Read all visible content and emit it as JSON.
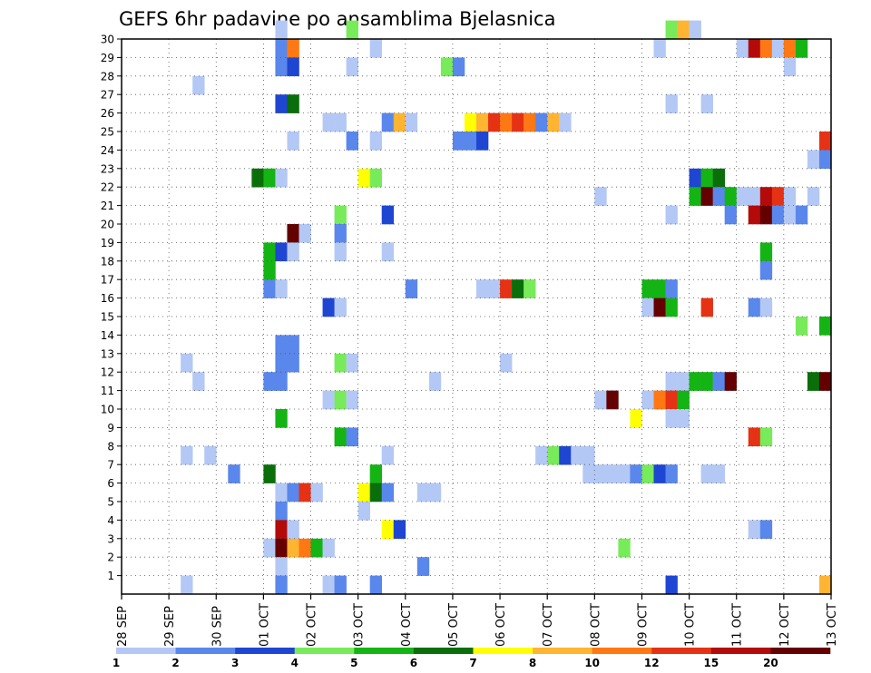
{
  "chart_data": {
    "type": "heatmap",
    "title": "GEFS 6hr padavine po ansamblima Bjelasnica",
    "xlabel": "",
    "ylabel": "",
    "x_tick_labels": [
      "28 SEP",
      "29 SEP",
      "30 SEP",
      "01 OCT",
      "02 OCT",
      "03 OCT",
      "04 OCT",
      "05 OCT",
      "06 OCT",
      "07 OCT",
      "08 OCT",
      "09 OCT",
      "10 OCT",
      "11 OCT",
      "12 OCT",
      "13 OCT"
    ],
    "y_tick_labels": [
      "1",
      "2",
      "3",
      "4",
      "5",
      "6",
      "7",
      "8",
      "9",
      "10",
      "11",
      "12",
      "13",
      "14",
      "15",
      "16",
      "17",
      "18",
      "19",
      "20",
      "21",
      "22",
      "23",
      "24",
      "25",
      "26",
      "27",
      "28",
      "29",
      "30"
    ],
    "ylim": [
      0,
      30
    ],
    "x_step": "6hr",
    "n_steps": 60,
    "grid": true,
    "legend_labels": [
      "1",
      "2",
      "3",
      "4",
      "5",
      "6",
      "7",
      "8",
      "10",
      "12",
      "15",
      "20"
    ],
    "colors": [
      "#b4c8f5",
      "#5a87eb",
      "#1e46d2",
      "#78eb5a",
      "#14b414",
      "#0a6e0a",
      "#ffff00",
      "#ffb432",
      "#ff7814",
      "#e63214",
      "#b40a0a",
      "#640000"
    ],
    "cells_comment_free": true,
    "cells": [
      [
        13,
        30,
        0
      ],
      [
        19,
        30,
        3
      ],
      [
        46,
        30,
        3
      ],
      [
        47,
        30,
        7
      ],
      [
        48,
        30,
        0
      ],
      [
        13,
        29,
        1
      ],
      [
        14,
        29,
        8
      ],
      [
        21,
        29,
        0
      ],
      [
        45,
        29,
        0
      ],
      [
        52,
        29,
        0
      ],
      [
        53,
        29,
        10
      ],
      [
        54,
        29,
        8
      ],
      [
        55,
        29,
        0
      ],
      [
        56,
        29,
        8
      ],
      [
        57,
        29,
        4
      ],
      [
        13,
        28,
        1
      ],
      [
        14,
        28,
        2
      ],
      [
        19,
        28,
        0
      ],
      [
        27,
        28,
        3
      ],
      [
        28,
        28,
        1
      ],
      [
        56,
        28,
        0
      ],
      [
        6,
        27,
        0
      ],
      [
        13,
        26,
        2
      ],
      [
        14,
        26,
        5
      ],
      [
        46,
        26,
        0
      ],
      [
        49,
        26,
        0
      ],
      [
        17,
        25,
        0
      ],
      [
        18,
        25,
        0
      ],
      [
        22,
        25,
        1
      ],
      [
        23,
        25,
        7
      ],
      [
        24,
        25,
        0
      ],
      [
        29,
        25,
        6
      ],
      [
        30,
        25,
        7
      ],
      [
        31,
        25,
        9
      ],
      [
        32,
        25,
        8
      ],
      [
        33,
        25,
        9
      ],
      [
        34,
        25,
        8
      ],
      [
        35,
        25,
        1
      ],
      [
        36,
        25,
        7
      ],
      [
        37,
        25,
        0
      ],
      [
        14,
        24,
        0
      ],
      [
        19,
        24,
        1
      ],
      [
        21,
        24,
        0
      ],
      [
        28,
        24,
        1
      ],
      [
        29,
        24,
        1
      ],
      [
        30,
        24,
        2
      ],
      [
        59,
        24,
        9
      ],
      [
        58,
        23,
        0
      ],
      [
        59,
        23,
        1
      ],
      [
        11,
        22,
        5
      ],
      [
        12,
        22,
        4
      ],
      [
        13,
        22,
        0
      ],
      [
        20,
        22,
        6
      ],
      [
        21,
        22,
        3
      ],
      [
        48,
        22,
        2
      ],
      [
        49,
        22,
        4
      ],
      [
        50,
        22,
        5
      ],
      [
        40,
        21,
        0
      ],
      [
        48,
        21,
        4
      ],
      [
        49,
        21,
        11
      ],
      [
        50,
        21,
        1
      ],
      [
        51,
        21,
        4
      ],
      [
        52,
        21,
        0
      ],
      [
        53,
        21,
        0
      ],
      [
        54,
        21,
        10
      ],
      [
        55,
        21,
        9
      ],
      [
        56,
        21,
        0
      ],
      [
        58,
        21,
        0
      ],
      [
        18,
        20,
        3
      ],
      [
        22,
        20,
        2
      ],
      [
        46,
        20,
        0
      ],
      [
        51,
        20,
        1
      ],
      [
        53,
        20,
        10
      ],
      [
        54,
        20,
        11
      ],
      [
        55,
        20,
        1
      ],
      [
        56,
        20,
        0
      ],
      [
        57,
        20,
        1
      ],
      [
        14,
        19,
        11
      ],
      [
        15,
        19,
        0
      ],
      [
        18,
        19,
        1
      ],
      [
        12,
        18,
        4
      ],
      [
        13,
        18,
        2
      ],
      [
        14,
        18,
        0
      ],
      [
        18,
        18,
        0
      ],
      [
        22,
        18,
        0
      ],
      [
        54,
        18,
        4
      ],
      [
        12,
        17,
        4
      ],
      [
        54,
        17,
        1
      ],
      [
        12,
        16,
        1
      ],
      [
        13,
        16,
        0
      ],
      [
        24,
        16,
        1
      ],
      [
        30,
        16,
        0
      ],
      [
        31,
        16,
        0
      ],
      [
        32,
        16,
        9
      ],
      [
        33,
        16,
        5
      ],
      [
        34,
        16,
        3
      ],
      [
        44,
        16,
        4
      ],
      [
        45,
        16,
        4
      ],
      [
        46,
        16,
        1
      ],
      [
        17,
        15,
        2
      ],
      [
        18,
        15,
        0
      ],
      [
        44,
        15,
        0
      ],
      [
        45,
        15,
        11
      ],
      [
        46,
        15,
        4
      ],
      [
        49,
        15,
        9
      ],
      [
        53,
        15,
        1
      ],
      [
        54,
        15,
        0
      ],
      [
        57,
        14,
        3
      ],
      [
        59,
        14,
        4
      ],
      [
        13,
        13,
        1
      ],
      [
        14,
        13,
        1
      ],
      [
        13,
        12,
        1
      ],
      [
        14,
        12,
        1
      ],
      [
        5,
        12,
        0
      ],
      [
        18,
        12,
        3
      ],
      [
        19,
        12,
        0
      ],
      [
        32,
        12,
        0
      ],
      [
        6,
        11,
        0
      ],
      [
        12,
        11,
        1
      ],
      [
        13,
        11,
        1
      ],
      [
        26,
        11,
        0
      ],
      [
        46,
        11,
        0
      ],
      [
        47,
        11,
        0
      ],
      [
        48,
        11,
        4
      ],
      [
        49,
        11,
        4
      ],
      [
        50,
        11,
        1
      ],
      [
        51,
        11,
        11
      ],
      [
        58,
        11,
        5
      ],
      [
        59,
        11,
        11
      ],
      [
        17,
        10,
        0
      ],
      [
        18,
        10,
        3
      ],
      [
        19,
        10,
        0
      ],
      [
        40,
        10,
        0
      ],
      [
        41,
        10,
        11
      ],
      [
        44,
        10,
        0
      ],
      [
        45,
        10,
        8
      ],
      [
        46,
        10,
        9
      ],
      [
        47,
        10,
        4
      ],
      [
        13,
        9,
        4
      ],
      [
        43,
        9,
        6
      ],
      [
        46,
        9,
        0
      ],
      [
        47,
        9,
        0
      ],
      [
        18,
        8,
        4
      ],
      [
        19,
        8,
        1
      ],
      [
        53,
        8,
        9
      ],
      [
        54,
        8,
        3
      ],
      [
        5,
        7,
        0
      ],
      [
        7,
        7,
        0
      ],
      [
        22,
        7,
        0
      ],
      [
        35,
        7,
        0
      ],
      [
        36,
        7,
        3
      ],
      [
        37,
        7,
        2
      ],
      [
        38,
        7,
        0
      ],
      [
        39,
        7,
        0
      ],
      [
        9,
        6,
        1
      ],
      [
        12,
        6,
        5
      ],
      [
        21,
        6,
        4
      ],
      [
        39,
        6,
        0
      ],
      [
        40,
        6,
        0
      ],
      [
        41,
        6,
        0
      ],
      [
        42,
        6,
        0
      ],
      [
        43,
        6,
        1
      ],
      [
        44,
        6,
        3
      ],
      [
        45,
        6,
        2
      ],
      [
        46,
        6,
        1
      ],
      [
        49,
        6,
        0
      ],
      [
        50,
        6,
        0
      ],
      [
        13,
        5,
        0
      ],
      [
        14,
        5,
        1
      ],
      [
        15,
        5,
        9
      ],
      [
        16,
        5,
        0
      ],
      [
        20,
        5,
        6
      ],
      [
        21,
        5,
        5
      ],
      [
        22,
        5,
        1
      ],
      [
        25,
        5,
        0
      ],
      [
        26,
        5,
        0
      ],
      [
        13,
        4,
        1
      ],
      [
        20,
        4,
        0
      ],
      [
        13,
        3,
        10
      ],
      [
        14,
        3,
        0
      ],
      [
        22,
        3,
        6
      ],
      [
        23,
        3,
        2
      ],
      [
        53,
        3,
        0
      ],
      [
        54,
        3,
        1
      ],
      [
        12,
        2,
        0
      ],
      [
        13,
        2,
        11
      ],
      [
        14,
        2,
        7
      ],
      [
        15,
        2,
        8
      ],
      [
        16,
        2,
        4
      ],
      [
        17,
        2,
        0
      ],
      [
        42,
        2,
        3
      ],
      [
        13,
        1,
        0
      ],
      [
        25,
        1,
        1
      ],
      [
        5,
        0,
        0
      ],
      [
        13,
        0,
        1
      ],
      [
        17,
        0,
        0
      ],
      [
        18,
        0,
        1
      ],
      [
        21,
        0,
        1
      ],
      [
        46,
        0,
        2
      ],
      [
        59,
        0,
        7
      ]
    ]
  }
}
